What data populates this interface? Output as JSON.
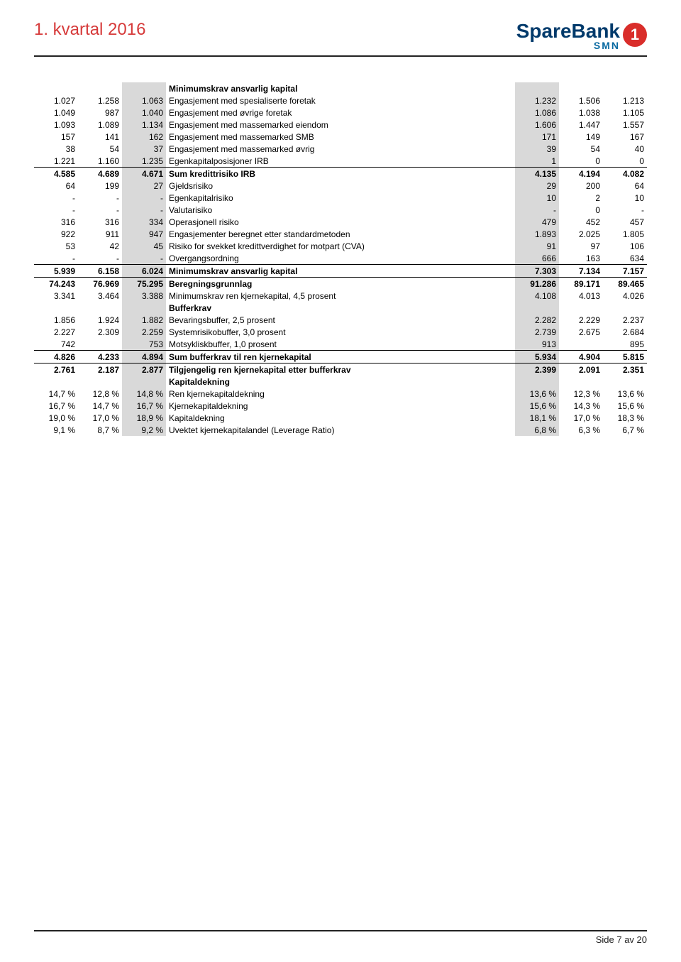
{
  "header": {
    "title": "1. kvartal 2016",
    "logo_brand1": "Spare",
    "logo_brand2": "Bank",
    "logo_sub": "SMN",
    "logo_badge": "1"
  },
  "footer": {
    "text": "Side 7 av 20"
  },
  "rows": [
    {
      "type": "section",
      "label": "Minimumskrav ansvarlig kapital"
    },
    {
      "c": [
        "1.027",
        "1.258",
        "1.063",
        "Engasjement med spesialiserte foretak",
        "1.232",
        "1.506",
        "1.213"
      ]
    },
    {
      "c": [
        "1.049",
        "987",
        "1.040",
        "Engasjement med øvrige foretak",
        "1.086",
        "1.038",
        "1.105"
      ]
    },
    {
      "c": [
        "1.093",
        "1.089",
        "1.134",
        "Engasjement med massemarked eiendom",
        "1.606",
        "1.447",
        "1.557"
      ]
    },
    {
      "c": [
        "157",
        "141",
        "162",
        "Engasjement med massemarked SMB",
        "171",
        "149",
        "167"
      ]
    },
    {
      "c": [
        "38",
        "54",
        "37",
        "Engasjement med massemarked øvrig",
        "39",
        "54",
        "40"
      ]
    },
    {
      "c": [
        "1.221",
        "1.160",
        "1.235",
        "Egenkapitalposisjoner IRB",
        "1",
        "0",
        "0"
      ]
    },
    {
      "bold": true,
      "toprule": true,
      "c": [
        "4.585",
        "4.689",
        "4.671",
        "Sum kredittrisiko IRB",
        "4.135",
        "4.194",
        "4.082"
      ]
    },
    {
      "c": [
        "64",
        "199",
        "27",
        "Gjeldsrisiko",
        "29",
        "200",
        "64"
      ]
    },
    {
      "c": [
        "-",
        "-",
        "-",
        "Egenkapitalrisiko",
        "10",
        "2",
        "10"
      ]
    },
    {
      "c": [
        "-",
        "-",
        "-",
        "Valutarisiko",
        "-",
        "0",
        "-"
      ]
    },
    {
      "c": [
        "316",
        "316",
        "334",
        "Operasjonell risiko",
        "479",
        "452",
        "457"
      ]
    },
    {
      "c": [
        "922",
        "911",
        "947",
        "Engasjementer beregnet etter standardmetoden",
        "1.893",
        "2.025",
        "1.805"
      ]
    },
    {
      "c": [
        "53",
        "42",
        "45",
        "Risiko for svekket kredittverdighet for motpart (CVA)",
        "91",
        "97",
        "106"
      ]
    },
    {
      "c": [
        "-",
        "-",
        "-",
        "Overgangsordning",
        "666",
        "163",
        "634"
      ]
    },
    {
      "bold": true,
      "toprule": true,
      "c": [
        "5.939",
        "6.158",
        "6.024",
        "Minimumskrav ansvarlig kapital",
        "7.303",
        "7.134",
        "7.157"
      ]
    },
    {
      "bold": true,
      "toprule": true,
      "c": [
        "74.243",
        "76.969",
        "75.295",
        "Beregningsgrunnlag",
        "91.286",
        "89.171",
        "89.465"
      ]
    },
    {
      "c": [
        "3.341",
        "3.464",
        "3.388",
        "Minimumskrav ren kjernekapital, 4,5 prosent",
        "4.108",
        "4.013",
        "4.026"
      ]
    },
    {
      "type": "section",
      "label": "Bufferkrav"
    },
    {
      "c": [
        "1.856",
        "1.924",
        "1.882",
        "Bevaringsbuffer, 2,5 prosent",
        "2.282",
        "2.229",
        "2.237"
      ]
    },
    {
      "c": [
        "2.227",
        "2.309",
        "2.259",
        "Systemrisikobuffer, 3,0 prosent",
        "2.739",
        "2.675",
        "2.684"
      ]
    },
    {
      "c": [
        "742",
        "",
        "753",
        "Motsykliskbuffer, 1,0 prosent",
        "913",
        "",
        "895"
      ]
    },
    {
      "bold": true,
      "toprule": true,
      "c": [
        "4.826",
        "4.233",
        "4.894",
        "Sum bufferkrav til ren kjernekapital",
        "5.934",
        "4.904",
        "5.815"
      ]
    },
    {
      "bold": true,
      "toprule": true,
      "c": [
        "2.761",
        "2.187",
        "2.877",
        "Tilgjengelig ren kjernekapital etter bufferkrav",
        "2.399",
        "2.091",
        "2.351"
      ]
    },
    {
      "type": "section",
      "label": "Kapitaldekning"
    },
    {
      "c": [
        "14,7 %",
        "12,8 %",
        "14,8 %",
        "Ren kjernekapitaldekning",
        "13,6 %",
        "12,3 %",
        "13,6 %"
      ]
    },
    {
      "c": [
        "16,7 %",
        "14,7 %",
        "16,7 %",
        "Kjernekapitaldekning",
        "15,6 %",
        "14,3 %",
        "15,6 %"
      ]
    },
    {
      "c": [
        "19,0 %",
        "17,0 %",
        "18,9 %",
        "Kapitaldekning",
        "18,1 %",
        "17,0 %",
        "18,3 %"
      ]
    },
    {
      "c": [
        "9,1 %",
        "8,7 %",
        "9,2 %",
        "Uvektet kjernekapitalandel (Leverage Ratio)",
        "6,8 %",
        "6,3 %",
        "6,7 %"
      ]
    }
  ],
  "style": {
    "header_title_color": "#d63a3a",
    "shade_bg": "#d9d9d9",
    "font_size_pt": 12
  }
}
